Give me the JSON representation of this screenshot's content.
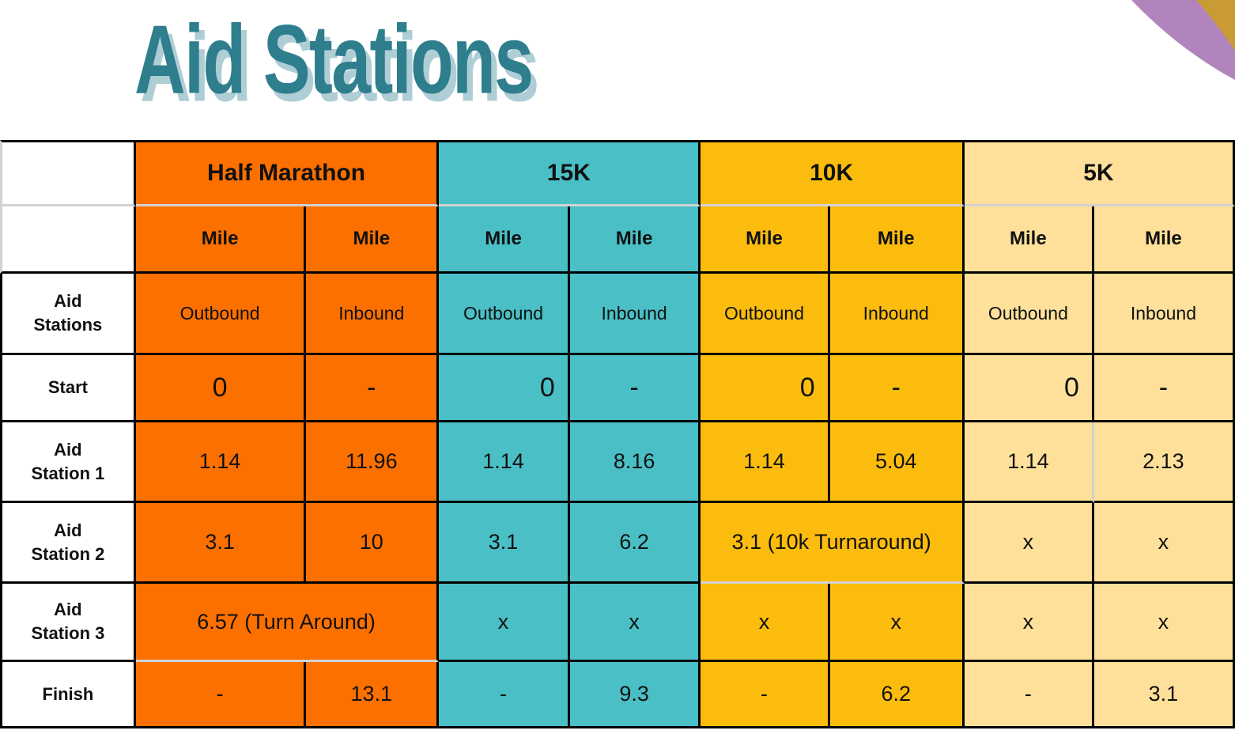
{
  "page": {
    "title": "Aid Stations"
  },
  "colors": {
    "half_marathon_orange": "#FC7000",
    "k15_teal": "#4ABFC6",
    "k10_gold": "#FBBC0D",
    "k5_light_yellow": "#FEE09A",
    "title_teal": "#2E7E8D",
    "title_shadow": "#AFCDD5",
    "corner_purple": "#B184BD",
    "corner_gold": "#C99B33",
    "light_border": "#D2D2D2"
  },
  "table": {
    "races": [
      {
        "key": "hm",
        "label": "Half Marathon"
      },
      {
        "key": "k15",
        "label": "15K"
      },
      {
        "key": "k10",
        "label": "10K"
      },
      {
        "key": "k5",
        "label": "5K"
      }
    ],
    "mile_label": "Mile",
    "directions_row_label": "Aid\nStations",
    "directions": [
      "Outbound",
      "Inbound"
    ],
    "body_rows": [
      {
        "label": "Start",
        "cells": [
          {
            "race": "hm",
            "text": "0",
            "big": true
          },
          {
            "race": "hm",
            "text": "-",
            "big": true
          },
          {
            "race": "k15",
            "text": "0",
            "big": true,
            "align": "right"
          },
          {
            "race": "k15",
            "text": "-",
            "big": true
          },
          {
            "race": "k10",
            "text": "0",
            "big": true,
            "align": "right"
          },
          {
            "race": "k10",
            "text": "-",
            "big": true
          },
          {
            "race": "k5",
            "text": "0",
            "big": true,
            "align": "right"
          },
          {
            "race": "k5",
            "text": "-",
            "big": true
          }
        ]
      },
      {
        "label": "Aid\nStation 1",
        "cells": [
          {
            "race": "hm",
            "text": "1.14"
          },
          {
            "race": "hm",
            "text": "11.96"
          },
          {
            "race": "k15",
            "text": "1.14"
          },
          {
            "race": "k15",
            "text": "8.16"
          },
          {
            "race": "k10",
            "text": "1.14"
          },
          {
            "race": "k10",
            "text": "5.04"
          },
          {
            "race": "k5",
            "text": "1.14",
            "border": "light-right"
          },
          {
            "race": "k5",
            "text": "2.13"
          }
        ]
      },
      {
        "label": "Aid\nStation 2",
        "cells": [
          {
            "race": "hm",
            "text": "3.1"
          },
          {
            "race": "hm",
            "text": "10"
          },
          {
            "race": "k15",
            "text": "3.1"
          },
          {
            "race": "k15",
            "text": "6.2"
          },
          {
            "race": "k10",
            "text": "3.1 (10k Turnaround)",
            "span": 2,
            "border": "light-bottom"
          },
          {
            "race": "k5",
            "text": "x"
          },
          {
            "race": "k5",
            "text": "x"
          }
        ]
      },
      {
        "label": "Aid\nStation 3",
        "cells": [
          {
            "race": "hm",
            "text": "6.57 (Turn Around)",
            "span": 2,
            "border": "light-bottom"
          },
          {
            "race": "k15",
            "text": "x"
          },
          {
            "race": "k15",
            "text": "x"
          },
          {
            "race": "k10",
            "text": "x"
          },
          {
            "race": "k10",
            "text": "x"
          },
          {
            "race": "k5",
            "text": "x"
          },
          {
            "race": "k5",
            "text": "x"
          }
        ]
      },
      {
        "label": "Finish",
        "cells": [
          {
            "race": "hm",
            "text": "-"
          },
          {
            "race": "hm",
            "text": "13.1"
          },
          {
            "race": "k15",
            "text": "-"
          },
          {
            "race": "k15",
            "text": "9.3"
          },
          {
            "race": "k10",
            "text": "-"
          },
          {
            "race": "k10",
            "text": "6.2"
          },
          {
            "race": "k5",
            "text": "-"
          },
          {
            "race": "k5",
            "text": "3.1"
          }
        ]
      }
    ]
  }
}
